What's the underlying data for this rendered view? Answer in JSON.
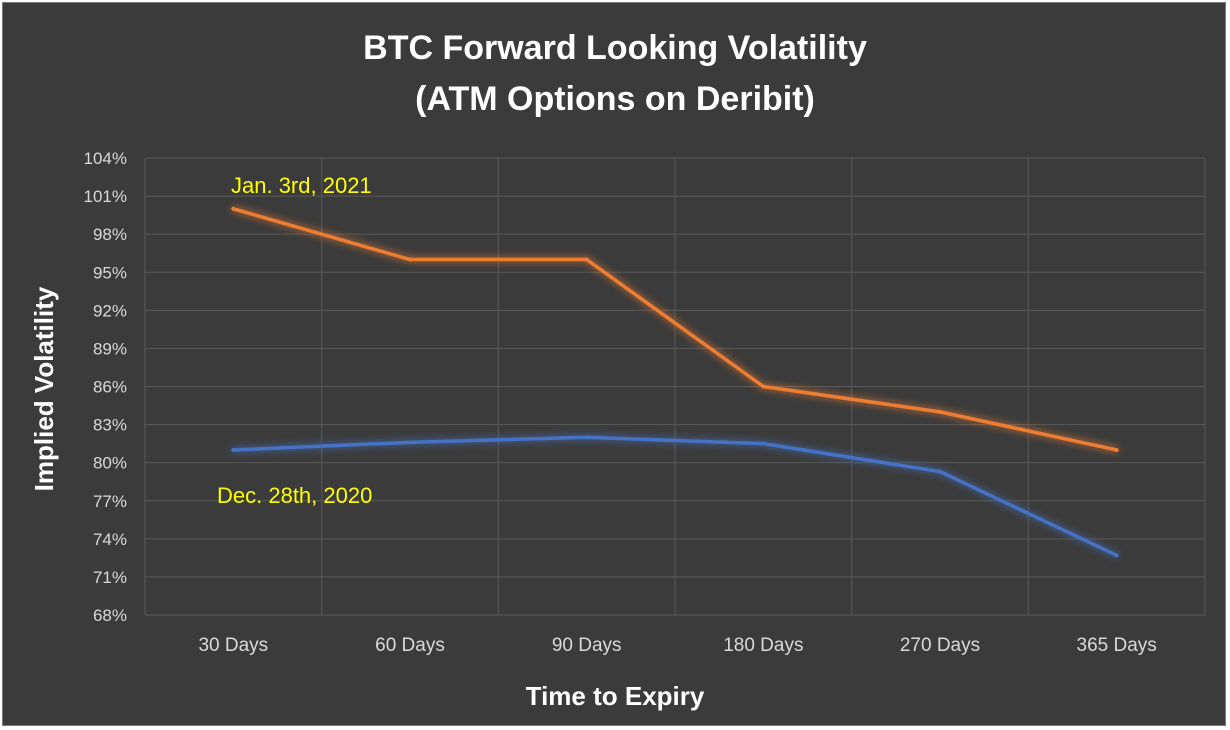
{
  "chart_data": {
    "type": "line",
    "title_line1": "BTC Forward Looking Volatility",
    "title_line2": "(ATM Options on Deribit)",
    "xlabel": "Time to Expiry",
    "ylabel": "Implied Volatility",
    "categories": [
      "30 Days",
      "60 Days",
      "90 Days",
      "180 Days",
      "270 Days",
      "365 Days"
    ],
    "y_ticks": [
      "68%",
      "71%",
      "74%",
      "77%",
      "80%",
      "83%",
      "86%",
      "89%",
      "92%",
      "95%",
      "98%",
      "101%",
      "104%"
    ],
    "ylim": [
      68,
      104
    ],
    "grid": true,
    "series": [
      {
        "name": "Jan. 3rd, 2021",
        "values": [
          100.0,
          96.0,
          96.0,
          86.0,
          84.0,
          81.0
        ],
        "color": "#ed7d31"
      },
      {
        "name": "Dec. 28th, 2020",
        "values": [
          81.0,
          81.6,
          82.0,
          81.5,
          79.3,
          72.7
        ],
        "color": "#4472c4"
      }
    ],
    "annotation_color": "#ffff00",
    "background_color": "#3b3b3b"
  }
}
